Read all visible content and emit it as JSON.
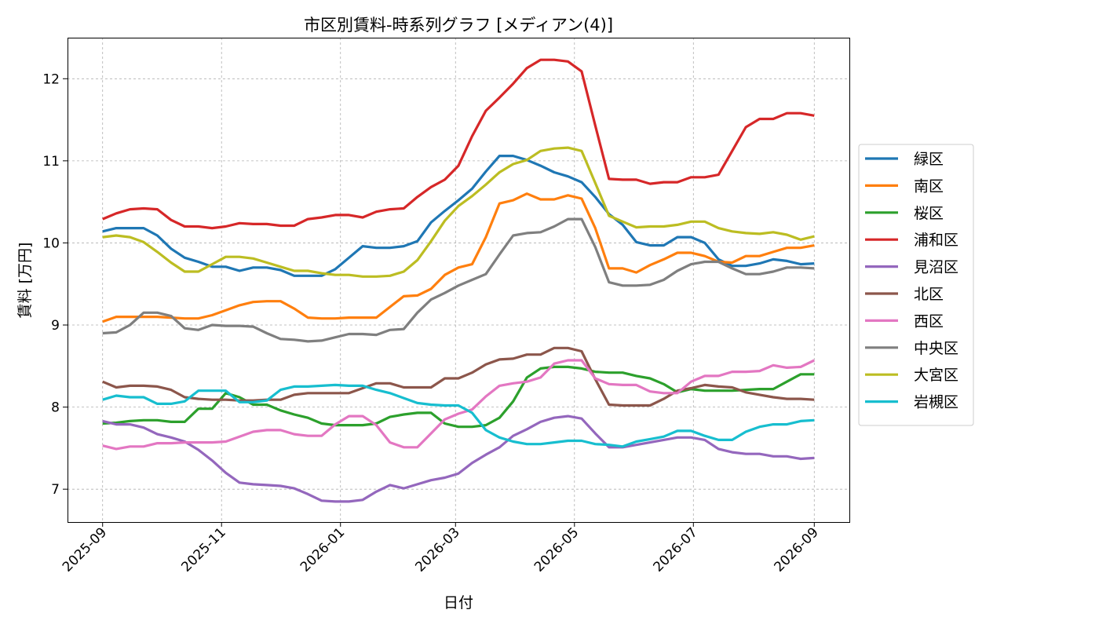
{
  "chart_data": {
    "type": "line",
    "title": "市区別賃料-時系列グラフ [メディアン(4)]",
    "xlabel": "日付",
    "ylabel": "賃料 [万円]",
    "x_start": "2025-09-01",
    "x_end": "2026-09-01",
    "xlim": [
      "2025-08-14",
      "2026-09-19"
    ],
    "ylim": [
      6.6,
      12.5
    ],
    "x_ticks": [
      "2025-09",
      "2025-11",
      "2026-01",
      "2026-03",
      "2026-05",
      "2026-07",
      "2026-09"
    ],
    "y_ticks": [
      7,
      8,
      9,
      10,
      11,
      12
    ],
    "grid": true,
    "legend_position": "center-right",
    "series": [
      {
        "name": "緑区",
        "color": "#1f77b4",
        "values": [
          10.14,
          10.18,
          10.18,
          10.18,
          10.09,
          9.93,
          9.82,
          9.77,
          9.71,
          9.71,
          9.66,
          9.7,
          9.7,
          9.67,
          9.6,
          9.6,
          9.6,
          9.68,
          9.82,
          9.96,
          9.94,
          9.94,
          9.96,
          10.02,
          10.25,
          10.39,
          10.52,
          10.66,
          10.87,
          11.06,
          11.06,
          11.01,
          10.94,
          10.86,
          10.81,
          10.74,
          10.56,
          10.35,
          10.22,
          10.01,
          9.97,
          9.97,
          10.07,
          10.07,
          10.0,
          9.8,
          9.72,
          9.72,
          9.75,
          9.8,
          9.78,
          9.74,
          9.75
        ]
      },
      {
        "name": "南区",
        "color": "#ff7f0e",
        "values": [
          9.04,
          9.1,
          9.1,
          9.1,
          9.1,
          9.09,
          9.08,
          9.08,
          9.12,
          9.18,
          9.24,
          9.28,
          9.29,
          9.29,
          9.2,
          9.09,
          9.08,
          9.08,
          9.09,
          9.09,
          9.09,
          9.22,
          9.35,
          9.36,
          9.44,
          9.61,
          9.7,
          9.74,
          10.07,
          10.48,
          10.52,
          10.6,
          10.53,
          10.53,
          10.58,
          10.54,
          10.18,
          9.69,
          9.69,
          9.64,
          9.73,
          9.8,
          9.88,
          9.88,
          9.84,
          9.77,
          9.76,
          9.84,
          9.84,
          9.89,
          9.94,
          9.94,
          9.97
        ]
      },
      {
        "name": "桜区",
        "color": "#2ca02c",
        "values": [
          7.8,
          7.81,
          7.83,
          7.84,
          7.84,
          7.82,
          7.82,
          7.98,
          7.98,
          8.17,
          8.12,
          8.03,
          8.03,
          7.96,
          7.91,
          7.87,
          7.8,
          7.78,
          7.78,
          7.78,
          7.8,
          7.88,
          7.91,
          7.93,
          7.93,
          7.8,
          7.76,
          7.76,
          7.78,
          7.87,
          8.07,
          8.36,
          8.47,
          8.49,
          8.49,
          8.47,
          8.43,
          8.42,
          8.42,
          8.38,
          8.35,
          8.28,
          8.18,
          8.22,
          8.2,
          8.2,
          8.2,
          8.21,
          8.22,
          8.22,
          8.31,
          8.4,
          8.4
        ]
      },
      {
        "name": "浦和区",
        "color": "#d62728",
        "values": [
          10.29,
          10.36,
          10.41,
          10.42,
          10.41,
          10.28,
          10.2,
          10.2,
          10.18,
          10.2,
          10.24,
          10.23,
          10.23,
          10.21,
          10.21,
          10.29,
          10.31,
          10.34,
          10.34,
          10.31,
          10.38,
          10.41,
          10.42,
          10.56,
          10.68,
          10.77,
          10.94,
          11.3,
          11.61,
          11.77,
          11.94,
          12.13,
          12.23,
          12.23,
          12.21,
          12.09,
          11.43,
          10.78,
          10.77,
          10.77,
          10.72,
          10.74,
          10.74,
          10.8,
          10.8,
          10.83,
          11.12,
          11.41,
          11.51,
          11.51,
          11.58,
          11.58,
          11.55
        ]
      },
      {
        "name": "見沼区",
        "color": "#9467bd",
        "values": [
          7.83,
          7.79,
          7.79,
          7.75,
          7.67,
          7.63,
          7.58,
          7.48,
          7.35,
          7.2,
          7.08,
          7.06,
          7.05,
          7.04,
          7.01,
          6.94,
          6.86,
          6.85,
          6.85,
          6.87,
          6.97,
          7.05,
          7.01,
          7.06,
          7.11,
          7.14,
          7.19,
          7.32,
          7.42,
          7.51,
          7.65,
          7.73,
          7.82,
          7.87,
          7.89,
          7.86,
          7.68,
          7.51,
          7.51,
          7.54,
          7.57,
          7.6,
          7.63,
          7.63,
          7.6,
          7.49,
          7.45,
          7.43,
          7.43,
          7.4,
          7.4,
          7.37,
          7.38
        ]
      },
      {
        "name": "北区",
        "color": "#8c564b",
        "values": [
          8.31,
          8.24,
          8.26,
          8.26,
          8.25,
          8.21,
          8.12,
          8.1,
          8.09,
          8.09,
          8.08,
          8.08,
          8.09,
          8.09,
          8.15,
          8.17,
          8.17,
          8.17,
          8.17,
          8.23,
          8.29,
          8.29,
          8.24,
          8.24,
          8.24,
          8.35,
          8.35,
          8.42,
          8.52,
          8.58,
          8.59,
          8.64,
          8.64,
          8.72,
          8.72,
          8.68,
          8.34,
          8.03,
          8.02,
          8.02,
          8.02,
          8.1,
          8.2,
          8.23,
          8.27,
          8.25,
          8.24,
          8.18,
          8.15,
          8.12,
          8.1,
          8.1,
          8.09
        ]
      },
      {
        "name": "西区",
        "color": "#e377c2",
        "values": [
          7.53,
          7.49,
          7.52,
          7.52,
          7.56,
          7.56,
          7.57,
          7.57,
          7.57,
          7.58,
          7.64,
          7.7,
          7.72,
          7.72,
          7.67,
          7.65,
          7.65,
          7.79,
          7.89,
          7.89,
          7.78,
          7.57,
          7.51,
          7.51,
          7.68,
          7.85,
          7.92,
          7.97,
          8.13,
          8.26,
          8.29,
          8.31,
          8.36,
          8.53,
          8.57,
          8.57,
          8.35,
          8.28,
          8.27,
          8.27,
          8.19,
          8.17,
          8.17,
          8.31,
          8.38,
          8.38,
          8.43,
          8.43,
          8.44,
          8.51,
          8.48,
          8.49,
          8.57
        ]
      },
      {
        "name": "中央区",
        "color": "#7f7f7f",
        "values": [
          8.9,
          8.91,
          9.0,
          9.15,
          9.15,
          9.11,
          8.96,
          8.94,
          9.0,
          8.99,
          8.99,
          8.98,
          8.9,
          8.83,
          8.82,
          8.8,
          8.81,
          8.85,
          8.89,
          8.89,
          8.88,
          8.94,
          8.95,
          9.15,
          9.31,
          9.39,
          9.48,
          9.55,
          9.62,
          9.86,
          10.09,
          10.12,
          10.13,
          10.2,
          10.29,
          10.29,
          9.95,
          9.52,
          9.48,
          9.48,
          9.49,
          9.55,
          9.66,
          9.74,
          9.77,
          9.77,
          9.69,
          9.62,
          9.62,
          9.65,
          9.7,
          9.7,
          9.69
        ]
      },
      {
        "name": "大宮区",
        "color": "#bcbd22",
        "values": [
          10.07,
          10.09,
          10.07,
          10.01,
          9.89,
          9.76,
          9.65,
          9.65,
          9.74,
          9.83,
          9.83,
          9.81,
          9.76,
          9.71,
          9.66,
          9.66,
          9.63,
          9.61,
          9.61,
          9.59,
          9.59,
          9.6,
          9.65,
          9.79,
          10.02,
          10.27,
          10.45,
          10.57,
          10.71,
          10.86,
          10.96,
          11.01,
          11.12,
          11.15,
          11.16,
          11.12,
          10.73,
          10.33,
          10.26,
          10.19,
          10.2,
          10.2,
          10.22,
          10.26,
          10.26,
          10.18,
          10.14,
          10.12,
          10.11,
          10.13,
          10.1,
          10.04,
          10.08
        ]
      },
      {
        "name": "岩槻区",
        "color": "#17becf",
        "values": [
          8.09,
          8.14,
          8.12,
          8.12,
          8.04,
          8.04,
          8.07,
          8.2,
          8.2,
          8.2,
          8.06,
          8.06,
          8.08,
          8.21,
          8.25,
          8.25,
          8.26,
          8.27,
          8.26,
          8.26,
          8.21,
          8.17,
          8.11,
          8.05,
          8.03,
          8.02,
          8.02,
          7.93,
          7.72,
          7.63,
          7.58,
          7.55,
          7.55,
          7.57,
          7.59,
          7.59,
          7.55,
          7.54,
          7.52,
          7.58,
          7.61,
          7.64,
          7.71,
          7.71,
          7.65,
          7.6,
          7.6,
          7.7,
          7.76,
          7.79,
          7.79,
          7.83,
          7.84
        ]
      }
    ]
  }
}
